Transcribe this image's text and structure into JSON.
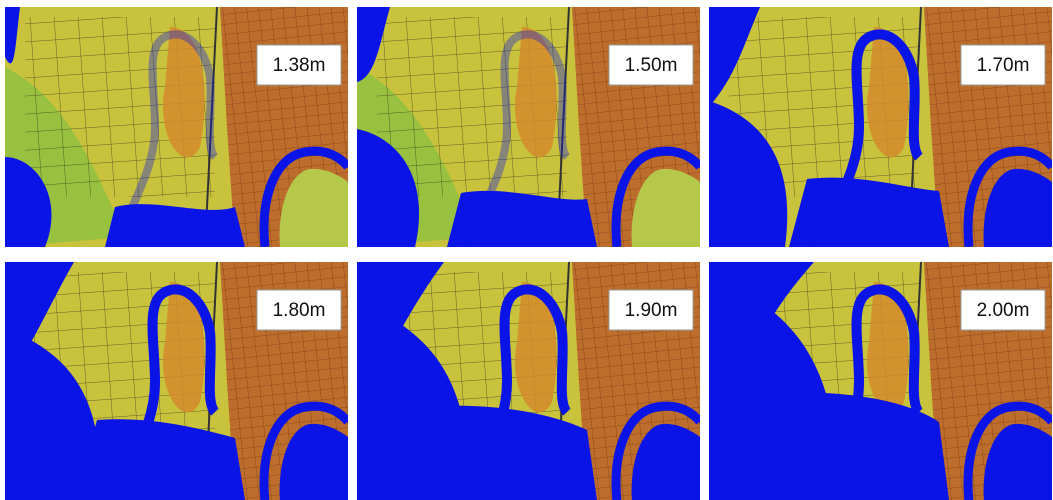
{
  "panels": [
    {
      "label": "1.38m"
    },
    {
      "label": "1.50m"
    },
    {
      "label": "1.70m"
    },
    {
      "label": "1.80m"
    },
    {
      "label": "1.90m"
    },
    {
      "label": "2.00m"
    }
  ]
}
